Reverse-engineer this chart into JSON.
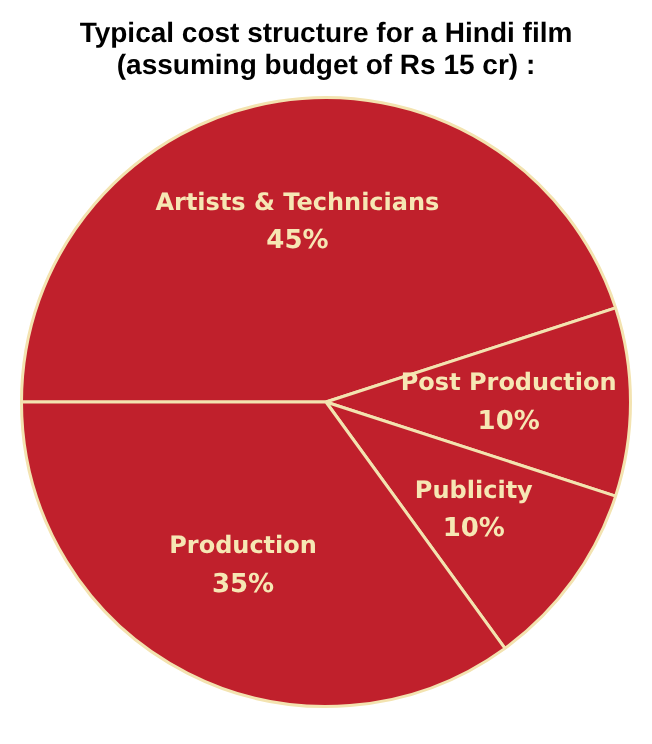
{
  "chart_data": {
    "type": "pie",
    "title": "Typical cost structure for a Hindi film (assuming budget of Rs 15 cr) :",
    "categories": [
      "Artists & Technicians",
      "Post Production",
      "Publicity",
      "Production"
    ],
    "values": [
      45,
      10,
      10,
      35
    ],
    "colors": [
      "#c0202c",
      "#c0202c",
      "#c0202c",
      "#c0202c"
    ],
    "value_labels": [
      "45%",
      "10%",
      "10%",
      "35%"
    ],
    "legend": false
  }
}
